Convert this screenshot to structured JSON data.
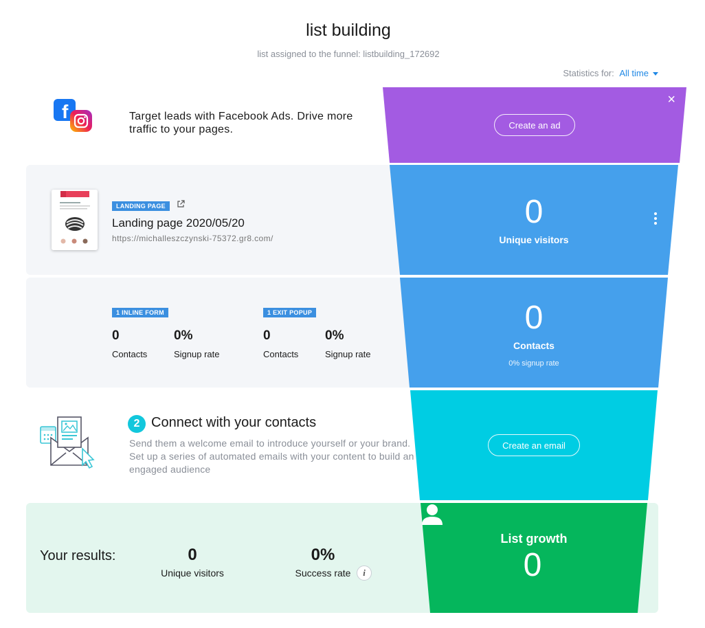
{
  "header": {
    "title": "list building",
    "subtitle": "list assigned to the funnel: listbuilding_172692",
    "stats_label": "Statistics for:",
    "stats_value": "All time"
  },
  "ads": {
    "text": "Target leads with Facebook Ads. Drive more traffic to your pages.",
    "button": "Create an ad",
    "close_icon": "×",
    "color": "#a35be2"
  },
  "landing": {
    "badge": "LANDING PAGE",
    "name": "Landing page 2020/05/20",
    "url": "https://michalleszczynski-75372.gr8.com/",
    "visitors_value": "0",
    "visitors_label": "Unique visitors",
    "color": "#45a0ec"
  },
  "forms": {
    "inline": {
      "badge": "1 INLINE FORM",
      "contacts": "0",
      "contacts_label": "Contacts",
      "rate": "0%",
      "rate_label": "Signup rate"
    },
    "exit": {
      "badge": "1 EXIT POPUP",
      "contacts": "0",
      "contacts_label": "Contacts",
      "rate": "0%",
      "rate_label": "Signup rate"
    },
    "contacts_value": "0",
    "contacts_label": "Contacts",
    "signup_note": "0% signup rate",
    "color": "#45a0ec"
  },
  "connect": {
    "step": "2",
    "title": "Connect with your contacts",
    "description": "Send them a welcome email to introduce yourself or your brand. Set up a series of automated emails with your content to build an engaged audience",
    "button": "Create an email",
    "color": "#00cde3"
  },
  "results": {
    "label": "Your results:",
    "visitors_value": "0",
    "visitors_label": "Unique visitors",
    "success_value": "0%",
    "success_label": "Success rate",
    "info_icon": "i",
    "growth_label": "List growth",
    "growth_value": "0",
    "color": "#05b65c"
  }
}
